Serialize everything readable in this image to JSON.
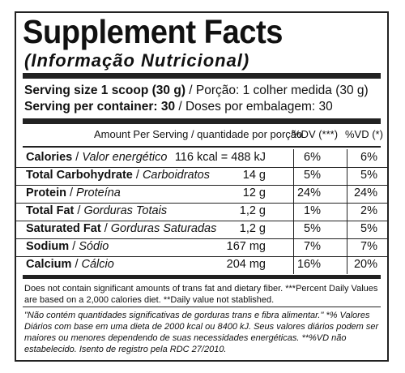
{
  "title": "Supplement Facts",
  "subtitle": "(Informação Nutricional)",
  "serving_size": {
    "label_en": "Serving size 1 scoop (30 g)",
    "label_pt": " / Porção: 1 colher medida (30 g)"
  },
  "servings_per_container": {
    "label_en": "Serving per container: 30",
    "label_pt": " / Doses por embalagem: 30"
  },
  "headers": {
    "amount": "Amount Per Serving / quantidade por porção",
    "dv": "%DV (***)",
    "vd": "%VD (*)"
  },
  "rows": [
    {
      "name": "Calories",
      "name_pt": "Valor energético",
      "amount": "116 kcal = 488 kJ",
      "dv": "6%",
      "vd": "6%"
    },
    {
      "name": "Total Carbohydrate",
      "name_pt": "Carboidratos",
      "amount": "14 g",
      "dv": "5%",
      "vd": "5%"
    },
    {
      "name": "Protein",
      "name_pt": "Proteína",
      "amount": "12 g",
      "dv": "24%",
      "vd": "24%"
    },
    {
      "name": "Total Fat",
      "name_pt": "Gorduras Totais",
      "amount": "1,2 g",
      "dv": "1%",
      "vd": "2%"
    },
    {
      "name": "Saturated Fat",
      "name_pt": "Gorduras Saturadas",
      "amount": "1,2 g",
      "dv": "5%",
      "vd": "5%"
    },
    {
      "name": "Sodium",
      "name_pt": "Sódio",
      "amount": "167 mg",
      "dv": "7%",
      "vd": "7%"
    },
    {
      "name": "Calcium",
      "name_pt": "Cálcio",
      "amount": "204 mg",
      "dv": "16%",
      "vd": "20%"
    }
  ],
  "footnote_en": "Does not contain significant amounts of trans fat and dietary fiber. ***Percent Daily Values are based on a 2,000 calories diet. **Daily value not stablished.",
  "footnote_pt": "\"Não contém quantidades significativas de gorduras trans e fibra alimentar.\" *% Valores Diários com base em uma dieta de 2000 kcal ou 8400 kJ. Seus valores diários podem ser maiores ou menores dependendo de suas necessidades energéticas. **%VD não estabelecido. Isento de registro pela RDC 27/2010."
}
